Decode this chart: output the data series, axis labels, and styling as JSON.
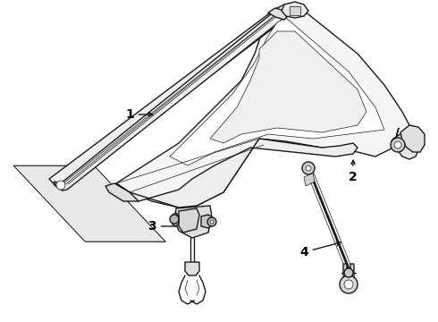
{
  "bg_color": "#ffffff",
  "line_color": "#1a1a1a",
  "lw_main": 1.0,
  "lw_thin": 0.5,
  "fig_width": 4.9,
  "fig_height": 3.6,
  "dpi": 100,
  "xlim": [
    0,
    490
  ],
  "ylim": [
    0,
    360
  ]
}
